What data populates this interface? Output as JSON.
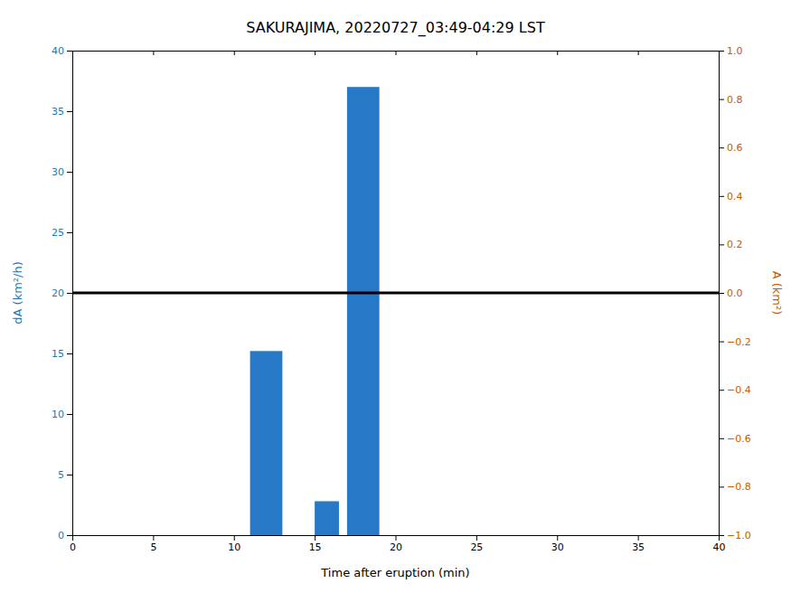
{
  "chart_data": {
    "type": "bar",
    "title": "SAKURAJIMA, 20220727_03:49-04:29 LST",
    "x_label": "Time after eruption (min)",
    "y_label": "dA (km²/h)",
    "y2_label": "A (km²)",
    "y_color": "#1f77b4",
    "y2_color": "#c85a00",
    "series": [
      {
        "type": "bar",
        "lefts": [
          11,
          15,
          17
        ],
        "rights": [
          13,
          16.5,
          19
        ],
        "values": [
          15.2,
          2.8,
          37.0
        ],
        "color": "#2878c8"
      },
      {
        "type": "hline",
        "values": [
          20.0
        ],
        "color": "black"
      }
    ],
    "xlim": [
      0,
      40
    ],
    "xticks": [
      0,
      5,
      10,
      15,
      20,
      25,
      30,
      35,
      40
    ],
    "ylim": [
      0,
      40
    ],
    "yticks": [
      0,
      5,
      10,
      15,
      20,
      25,
      30,
      35,
      40
    ],
    "y2lim": [
      -1,
      1
    ],
    "y2ticks": [
      {
        "value": -1,
        "label": "−1.0"
      },
      {
        "value": -0.8,
        "label": "−0.8"
      },
      {
        "value": -0.6,
        "label": "−0.6"
      },
      {
        "value": -0.4,
        "label": "−0.4"
      },
      {
        "value": -0.2,
        "label": "−0.2"
      },
      {
        "value": 0,
        "label": "0.0"
      },
      {
        "value": 0.2,
        "label": "0.2"
      },
      {
        "value": 0.4,
        "label": "0.4"
      },
      {
        "value": 0.6,
        "label": "0.6"
      },
      {
        "value": 0.8,
        "label": "0.8"
      },
      {
        "value": 1,
        "label": "1.0"
      }
    ],
    "grid": false
  }
}
